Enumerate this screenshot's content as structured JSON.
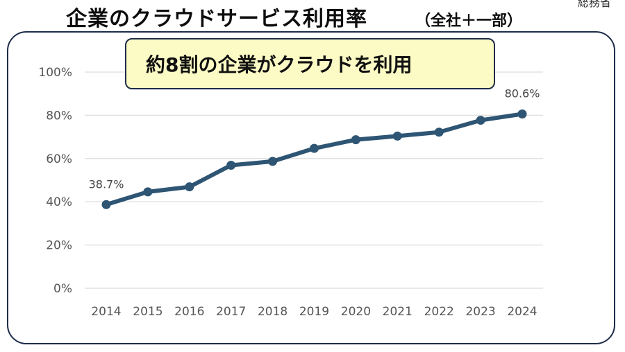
{
  "page": {
    "title": "企業のクラウドサービス利用率",
    "title_suffix": "（全社＋一部）",
    "corner_label": "総務省",
    "callout": "約8割の企業がクラウドを利用"
  },
  "colors": {
    "line": "#2e5573",
    "callout_fill": "#fdfbc5",
    "border": "#1d2c48",
    "grid": "#e2e2e2"
  },
  "chart_data": {
    "type": "line",
    "categories": [
      "2014",
      "2015",
      "2016",
      "2017",
      "2018",
      "2019",
      "2020",
      "2021",
      "2022",
      "2023",
      "2024"
    ],
    "values": [
      38.7,
      44.6,
      46.9,
      56.9,
      58.7,
      64.7,
      68.7,
      70.4,
      72.2,
      77.7,
      80.6
    ],
    "y_ticks": [
      "100%",
      "80%",
      "60%",
      "40%",
      "20%",
      "0%"
    ],
    "ylim": [
      0,
      100
    ],
    "grid": true,
    "data_labels": [
      {
        "index": 0,
        "text": "38.7%"
      },
      {
        "index": 10,
        "text": "80.6%"
      }
    ]
  }
}
